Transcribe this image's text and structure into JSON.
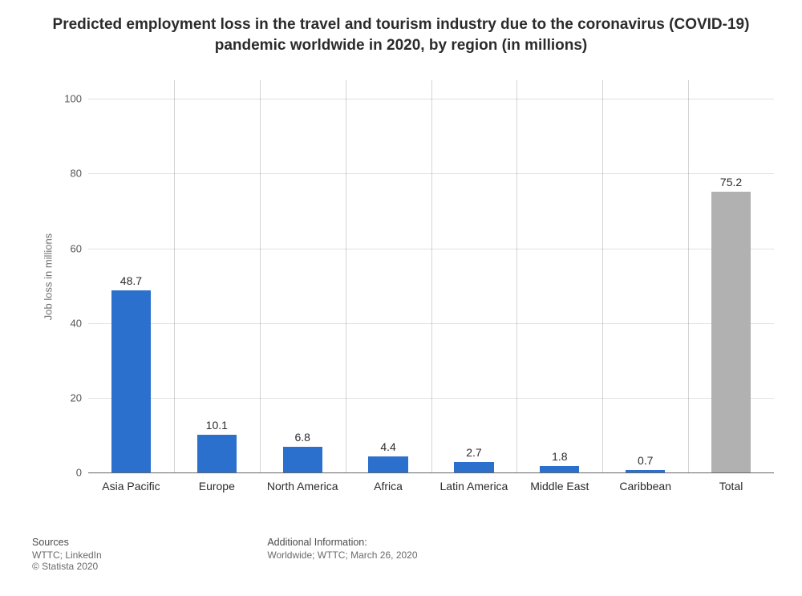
{
  "title": "Predicted employment loss in the travel and tourism industry due to the coronavirus (COVID-19) pandemic worldwide in 2020, by region (in millions)",
  "chart": {
    "type": "bar",
    "ylabel": "Job loss in millions",
    "ylim": [
      0,
      105
    ],
    "yticks": [
      0,
      20,
      40,
      60,
      80,
      100
    ],
    "grid_color": "#a8a8a8",
    "background_color": "#ffffff",
    "bar_width_ratio": 0.46,
    "value_label_fontsize": 14,
    "cat_label_fontsize": 14,
    "categories": [
      "Asia Pacific",
      "Europe",
      "North America",
      "Africa",
      "Latin America",
      "Middle East",
      "Caribbean",
      "Total"
    ],
    "values": [
      48.7,
      10.1,
      6.8,
      4.4,
      2.7,
      1.8,
      0.7,
      75.2
    ],
    "bar_colors": [
      "#2a70cc",
      "#2a70cc",
      "#2a70cc",
      "#2a70cc",
      "#2a70cc",
      "#2a70cc",
      "#2a70cc",
      "#b1b1b1"
    ]
  },
  "footer": {
    "sources_header": "Sources",
    "sources_text": "WTTC; LinkedIn",
    "copyright": "© Statista 2020",
    "additional_header": "Additional Information:",
    "additional_text": "Worldwide; WTTC; March 26, 2020"
  }
}
